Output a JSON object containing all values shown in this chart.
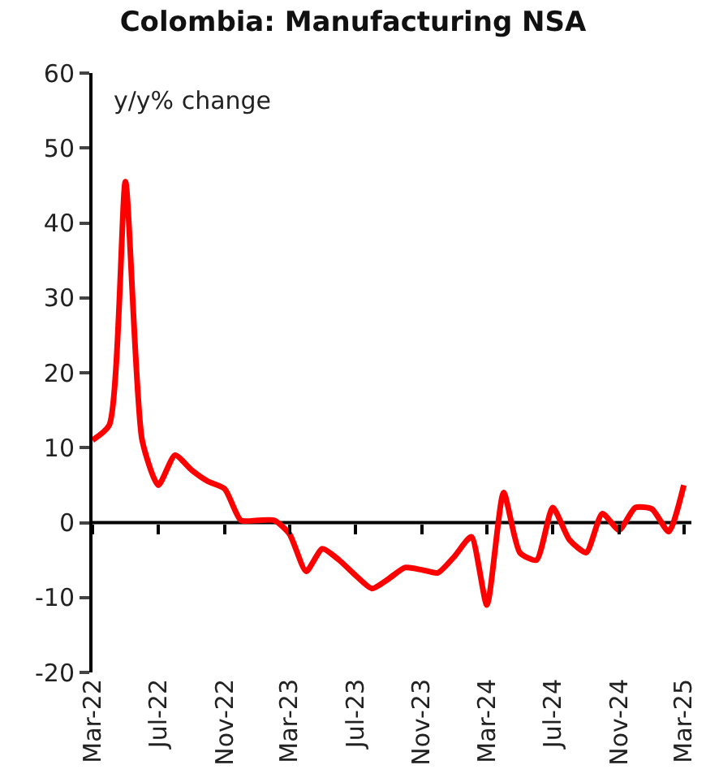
{
  "chart_data": {
    "type": "line",
    "title": "Colombia: Manufacturing NSA",
    "ylabel": "y/y% change",
    "x": [
      "2022-03",
      "2022-04",
      "2022-05",
      "2022-06",
      "2022-07",
      "2022-08",
      "2022-09",
      "2022-10",
      "2022-11",
      "2022-12",
      "2023-01",
      "2023-02",
      "2023-03",
      "2023-04",
      "2023-05",
      "2023-06",
      "2023-07",
      "2023-08",
      "2023-09",
      "2023-10",
      "2023-11",
      "2023-12",
      "2024-01",
      "2024-02",
      "2024-03",
      "2024-04",
      "2024-05",
      "2024-06",
      "2024-07",
      "2024-08",
      "2024-09",
      "2024-10",
      "2024-11",
      "2024-12",
      "2025-01",
      "2025-02",
      "2025-03"
    ],
    "series": [
      {
        "color": "#ff0000",
        "values": [
          11,
          13,
          45.5,
          11,
          5,
          9,
          7,
          5.5,
          4.5,
          0.3,
          0.3,
          0.3,
          -1.5,
          -6.5,
          -3.5,
          -5,
          -7,
          -8.8,
          -7.5,
          -6,
          -6.3,
          -6.7,
          -4.5,
          -1.9,
          -11,
          4,
          -4,
          -5,
          2,
          -2.3,
          -4,
          1.2,
          -1,
          2,
          1.8,
          -1.2,
          5
        ]
      }
    ],
    "xlim": [
      "2022-03-01",
      "2025-03-15"
    ],
    "xticks": [
      {
        "value": "2022-03",
        "label": "Mar-22"
      },
      {
        "value": "2022-07",
        "label": "Jul-22"
      },
      {
        "value": "2022-11",
        "label": "Nov-22"
      },
      {
        "value": "2023-03",
        "label": "Mar-23"
      },
      {
        "value": "2023-07",
        "label": "Jul-23"
      },
      {
        "value": "2023-11",
        "label": "Nov-23"
      },
      {
        "value": "2024-03",
        "label": "Mar-24"
      },
      {
        "value": "2024-07",
        "label": "Jul-24"
      },
      {
        "value": "2024-11",
        "label": "Nov-24"
      },
      {
        "value": "2025-03",
        "label": "Mar-25"
      }
    ],
    "ylim": [
      -20,
      60
    ],
    "yticks": [
      -20,
      -10,
      0,
      10,
      20,
      30,
      40,
      50,
      60
    ],
    "ref_lines": [
      {
        "axis": "y",
        "value": 0,
        "color": "#000000"
      }
    ],
    "grid": false,
    "marker": "none",
    "line_style": "solid"
  }
}
